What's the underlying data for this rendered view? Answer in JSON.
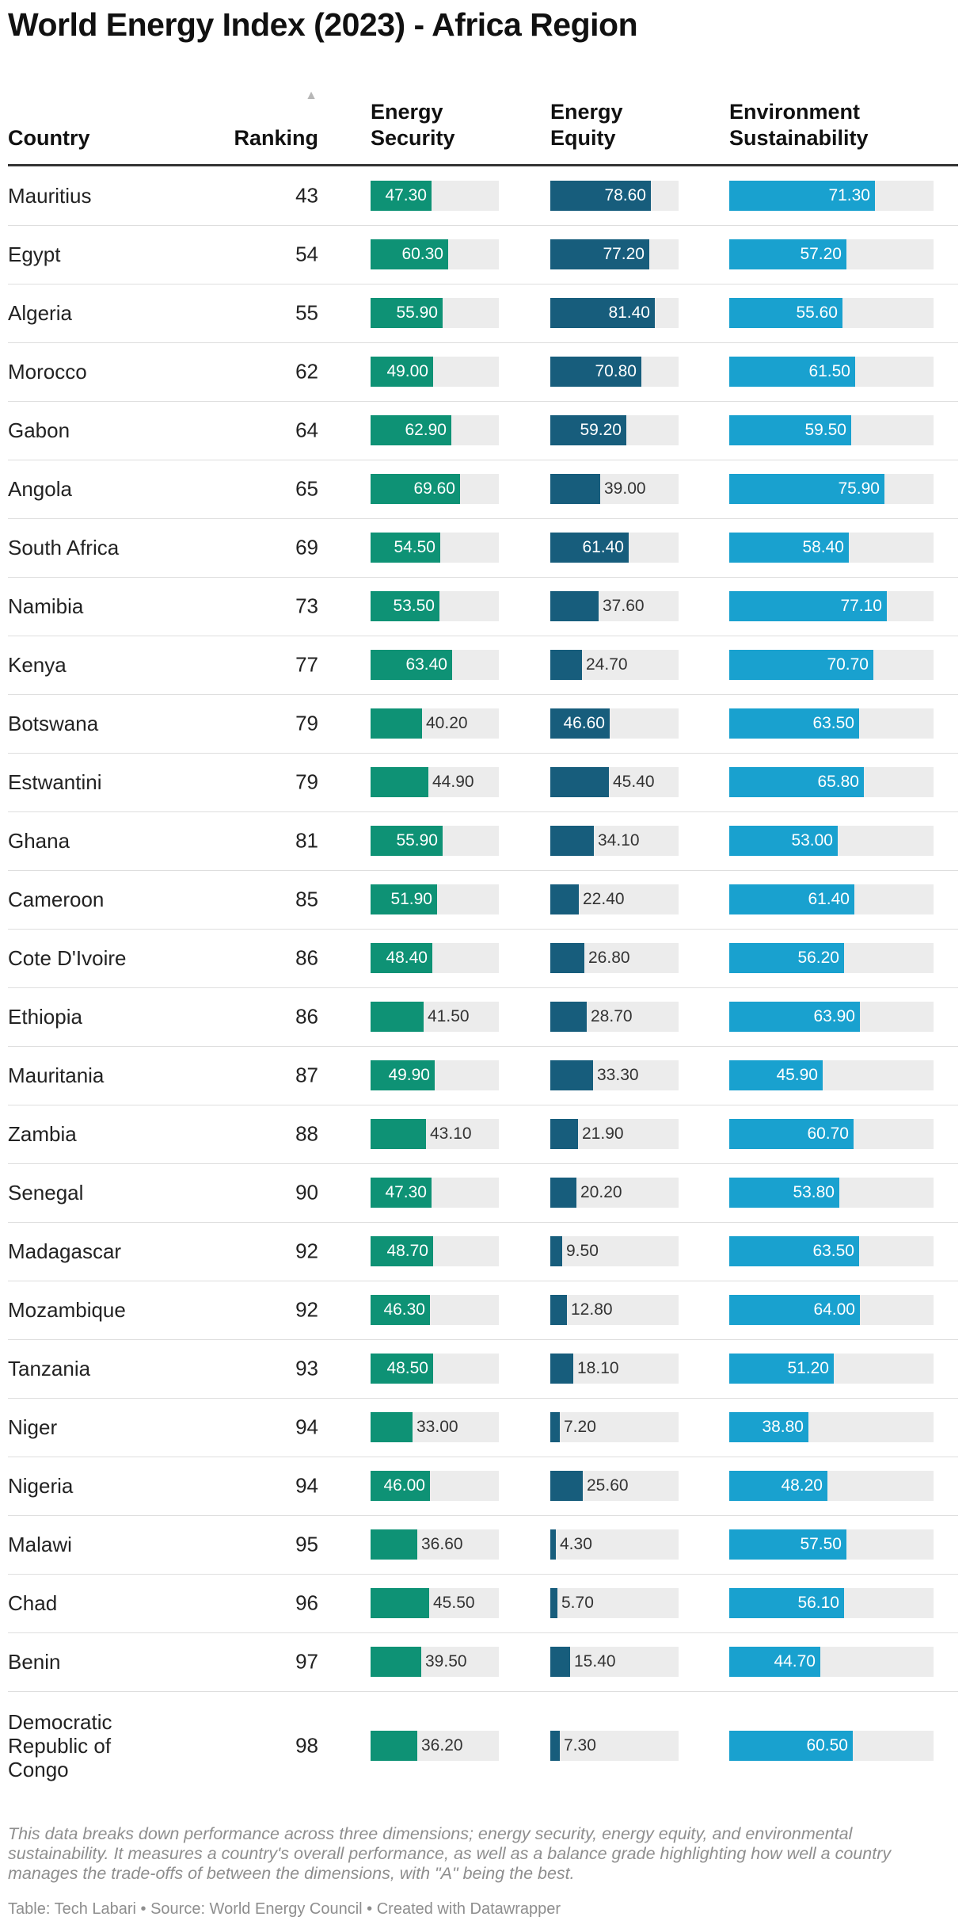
{
  "title": "World Energy Index (2023) - Africa Region",
  "columns": {
    "country": "Country",
    "ranking": "Ranking",
    "sort_icon": "sort-ascending-icon",
    "security": "Energy Security",
    "equity": "Energy Equity",
    "sustainability": "Environment Sustainability"
  },
  "colors": {
    "security": "#0e9275",
    "equity": "#175d7c",
    "sustainability": "#19a1cf",
    "track": "#ececec"
  },
  "chart_data": {
    "type": "table",
    "title": "World Energy Index (2023) - Africa Region",
    "columns": [
      "Country",
      "Ranking",
      "Energy Security",
      "Energy Equity",
      "Environment Sustainability"
    ],
    "scale_max": 100,
    "rows": [
      {
        "country": "Mauritius",
        "ranking": 43,
        "security": 47.3,
        "equity": 78.6,
        "sustainability": 71.3
      },
      {
        "country": "Egypt",
        "ranking": 54,
        "security": 60.3,
        "equity": 77.2,
        "sustainability": 57.2
      },
      {
        "country": "Algeria",
        "ranking": 55,
        "security": 55.9,
        "equity": 81.4,
        "sustainability": 55.6
      },
      {
        "country": "Morocco",
        "ranking": 62,
        "security": 49.0,
        "equity": 70.8,
        "sustainability": 61.5
      },
      {
        "country": "Gabon",
        "ranking": 64,
        "security": 62.9,
        "equity": 59.2,
        "sustainability": 59.5
      },
      {
        "country": "Angola",
        "ranking": 65,
        "security": 69.6,
        "equity": 39.0,
        "sustainability": 75.9
      },
      {
        "country": "South Africa",
        "ranking": 69,
        "security": 54.5,
        "equity": 61.4,
        "sustainability": 58.4
      },
      {
        "country": "Namibia",
        "ranking": 73,
        "security": 53.5,
        "equity": 37.6,
        "sustainability": 77.1
      },
      {
        "country": "Kenya",
        "ranking": 77,
        "security": 63.4,
        "equity": 24.7,
        "sustainability": 70.7
      },
      {
        "country": "Botswana",
        "ranking": 79,
        "security": 40.2,
        "equity": 46.6,
        "sustainability": 63.5
      },
      {
        "country": "Estwantini",
        "ranking": 79,
        "security": 44.9,
        "equity": 45.4,
        "sustainability": 65.8
      },
      {
        "country": "Ghana",
        "ranking": 81,
        "security": 55.9,
        "equity": 34.1,
        "sustainability": 53.0
      },
      {
        "country": "Cameroon",
        "ranking": 85,
        "security": 51.9,
        "equity": 22.4,
        "sustainability": 61.4
      },
      {
        "country": "Cote D'Ivoire",
        "ranking": 86,
        "security": 48.4,
        "equity": 26.8,
        "sustainability": 56.2
      },
      {
        "country": "Ethiopia",
        "ranking": 86,
        "security": 41.5,
        "equity": 28.7,
        "sustainability": 63.9
      },
      {
        "country": "Mauritania",
        "ranking": 87,
        "security": 49.9,
        "equity": 33.3,
        "sustainability": 45.9
      },
      {
        "country": "Zambia",
        "ranking": 88,
        "security": 43.1,
        "equity": 21.9,
        "sustainability": 60.7
      },
      {
        "country": "Senegal",
        "ranking": 90,
        "security": 47.3,
        "equity": 20.2,
        "sustainability": 53.8
      },
      {
        "country": "Madagascar",
        "ranking": 92,
        "security": 48.7,
        "equity": 9.5,
        "sustainability": 63.5
      },
      {
        "country": "Mozambique",
        "ranking": 92,
        "security": 46.3,
        "equity": 12.8,
        "sustainability": 64.0
      },
      {
        "country": "Tanzania",
        "ranking": 93,
        "security": 48.5,
        "equity": 18.1,
        "sustainability": 51.2
      },
      {
        "country": "Niger",
        "ranking": 94,
        "security": 33.0,
        "equity": 7.2,
        "sustainability": 38.8
      },
      {
        "country": "Nigeria",
        "ranking": 94,
        "security": 46.0,
        "equity": 25.6,
        "sustainability": 48.2
      },
      {
        "country": "Malawi",
        "ranking": 95,
        "security": 36.6,
        "equity": 4.3,
        "sustainability": 57.5
      },
      {
        "country": "Chad",
        "ranking": 96,
        "security": 45.5,
        "equity": 5.7,
        "sustainability": 56.1
      },
      {
        "country": "Benin",
        "ranking": 97,
        "security": 39.5,
        "equity": 15.4,
        "sustainability": 44.7
      },
      {
        "country": "Democratic Republic of Congo",
        "ranking": 98,
        "security": 36.2,
        "equity": 7.3,
        "sustainability": 60.5
      }
    ]
  },
  "footnote": "This data breaks down performance across three dimensions; energy security, energy equity, and environmental sustainability. It measures a country's overall performance, as well as a balance grade highlighting how well a country manages the trade-offs of between the dimensions, with \"A\" being the best.",
  "credit": "Table: Tech Labari • Source: World Energy Council • Created with Datawrapper"
}
